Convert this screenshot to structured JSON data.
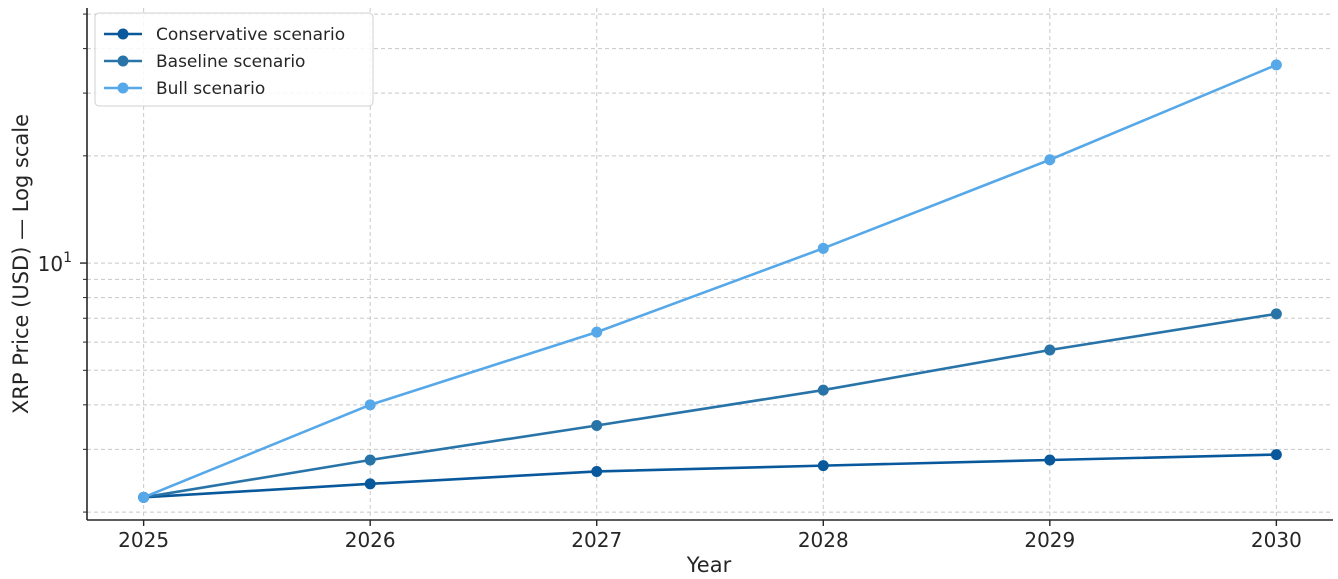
{
  "chart_data": {
    "type": "line",
    "title": "",
    "xlabel": "Year",
    "ylabel": "XRP Price (USD) — Log scale",
    "yscale": "log",
    "ytick_label": {
      "base": "10",
      "exp": "1"
    },
    "ytick_value": 10,
    "ylim": [
      1.9,
      52
    ],
    "xlim": [
      2024.75,
      2030.25
    ],
    "grid": true,
    "legend_position": "upper-left",
    "x": [
      2025,
      2026,
      2027,
      2028,
      2029,
      2030
    ],
    "x_tick_labels": [
      "2025",
      "2026",
      "2027",
      "2028",
      "2029",
      "2030"
    ],
    "series": [
      {
        "name": "Conservative scenario",
        "color": "#08589b",
        "values": [
          2.2,
          2.4,
          2.6,
          2.7,
          2.8,
          2.9
        ]
      },
      {
        "name": "Baseline scenario",
        "color": "#2874a8",
        "values": [
          2.2,
          2.8,
          3.5,
          4.4,
          5.7,
          7.2
        ]
      },
      {
        "name": "Bull scenario",
        "color": "#56a8e8",
        "values": [
          2.2,
          4.0,
          6.4,
          11.0,
          19.5,
          36.0
        ]
      }
    ]
  }
}
